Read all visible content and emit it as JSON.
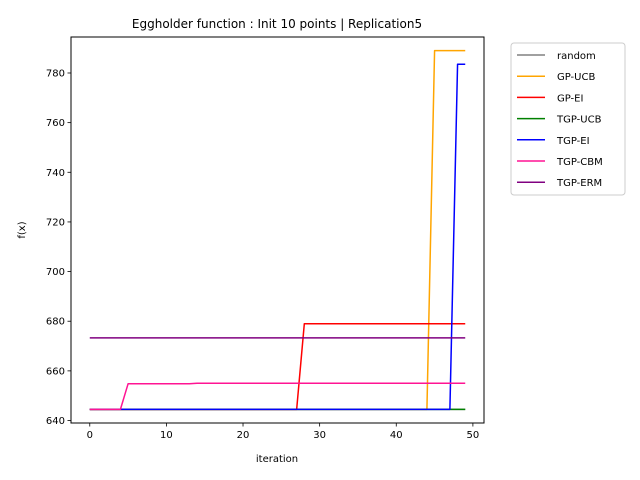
{
  "chart_data": {
    "type": "line",
    "title": "Eggholder function : Init 10 points | Replication5",
    "xlabel": "iteration",
    "ylabel": "f(x)",
    "xlim": [
      -2.45,
      51.45
    ],
    "ylim": [
      639.0,
      794.5
    ],
    "xticks": [
      0,
      10,
      20,
      30,
      40,
      50
    ],
    "yticks": [
      640,
      660,
      680,
      700,
      720,
      740,
      760,
      780
    ],
    "grid": false,
    "legend_position": "outside-top-right",
    "series": [
      {
        "name": "random",
        "color": "#808080",
        "points": [
          [
            0,
            644.5
          ],
          [
            49,
            644.5
          ]
        ]
      },
      {
        "name": "GP-UCB",
        "color": "#ffa500",
        "points": [
          [
            0,
            644.5
          ],
          [
            44,
            644.5
          ],
          [
            45,
            789.0
          ],
          [
            49,
            789.0
          ]
        ]
      },
      {
        "name": "GP-EI",
        "color": "#ff0000",
        "points": [
          [
            0,
            644.5
          ],
          [
            27,
            644.5
          ],
          [
            28,
            679.0
          ],
          [
            49,
            679.0
          ]
        ]
      },
      {
        "name": "TGP-UCB",
        "color": "#008000",
        "points": [
          [
            0,
            644.5
          ],
          [
            49,
            644.5
          ]
        ]
      },
      {
        "name": "TGP-EI",
        "color": "#0000ff",
        "points": [
          [
            0,
            644.5
          ],
          [
            47,
            644.5
          ],
          [
            48,
            783.5
          ],
          [
            49,
            783.5
          ]
        ]
      },
      {
        "name": "TGP-CBM",
        "color": "#ff1493",
        "points": [
          [
            0,
            644.5
          ],
          [
            4,
            644.5
          ],
          [
            5,
            654.8
          ],
          [
            13,
            654.8
          ],
          [
            14,
            655.0
          ],
          [
            49,
            655.0
          ]
        ]
      },
      {
        "name": "TGP-ERM",
        "color": "#800080",
        "points": [
          [
            0,
            673.3
          ],
          [
            49,
            673.3
          ]
        ]
      }
    ]
  }
}
